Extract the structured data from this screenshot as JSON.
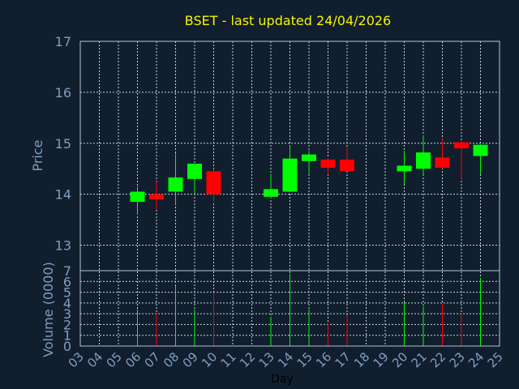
{
  "chart_data": [
    {
      "type": "candlestick",
      "title": "BSET - last updated 24/04/2026",
      "ylabel": "Price",
      "ylim": [
        12.5,
        17
      ],
      "yticks": [
        "13",
        "14",
        "15",
        "16",
        "17"
      ],
      "grid": true,
      "days": [
        "06",
        "07",
        "08",
        "09",
        "10",
        "13",
        "14",
        "15",
        "16",
        "17",
        "20",
        "21",
        "22",
        "23",
        "24"
      ],
      "open": [
        13.85,
        14.0,
        14.05,
        14.3,
        14.45,
        13.95,
        14.05,
        14.65,
        14.68,
        14.68,
        14.45,
        14.5,
        14.72,
        15.02,
        14.75
      ],
      "high": [
        14.15,
        14.25,
        14.8,
        14.6,
        14.5,
        14.4,
        14.95,
        14.85,
        14.72,
        14.92,
        14.85,
        15.15,
        15.08,
        15.05,
        14.98
      ],
      "low": [
        13.6,
        13.7,
        13.78,
        14.0,
        13.85,
        13.92,
        14.05,
        14.4,
        14.38,
        14.45,
        14.2,
        14.38,
        14.5,
        14.3,
        14.4
      ],
      "close": [
        14.05,
        13.9,
        14.33,
        14.6,
        14.0,
        14.1,
        14.7,
        14.78,
        14.52,
        14.45,
        14.56,
        14.82,
        14.52,
        14.9,
        14.97
      ],
      "up_color": "#00ff00",
      "down_color": "#ff0000"
    },
    {
      "type": "bar",
      "ylabel": "Volume (0000)",
      "xlabel": "Day",
      "ylim": [
        0,
        7
      ],
      "yticks": [
        "0",
        "1",
        "2",
        "3",
        "4",
        "5",
        "6",
        "7"
      ],
      "xticks": [
        "03",
        "04",
        "05",
        "06",
        "07",
        "08",
        "09",
        "10",
        "11",
        "12",
        "13",
        "14",
        "15",
        "16",
        "17",
        "18",
        "19",
        "20",
        "21",
        "22",
        "23",
        "24",
        "25"
      ],
      "days": [
        "06",
        "07",
        "08",
        "09",
        "10",
        "13",
        "14",
        "15",
        "16",
        "17",
        "20",
        "21",
        "22",
        "23",
        "24"
      ],
      "values": [
        3.4,
        3.1,
        5.6,
        3.4,
        4.9,
        2.7,
        6.7,
        3.4,
        2.2,
        2.9,
        4.1,
        3.7,
        3.9,
        3.0,
        6.3
      ],
      "colors": [
        "#00ff00",
        "#ff0000",
        "#00ff00",
        "#00ff00",
        "#ff0000",
        "#00ff00",
        "#00ff00",
        "#00ff00",
        "#ff0000",
        "#ff0000",
        "#00ff00",
        "#00ff00",
        "#ff0000",
        "#ff0000",
        "#00ff00"
      ]
    }
  ]
}
